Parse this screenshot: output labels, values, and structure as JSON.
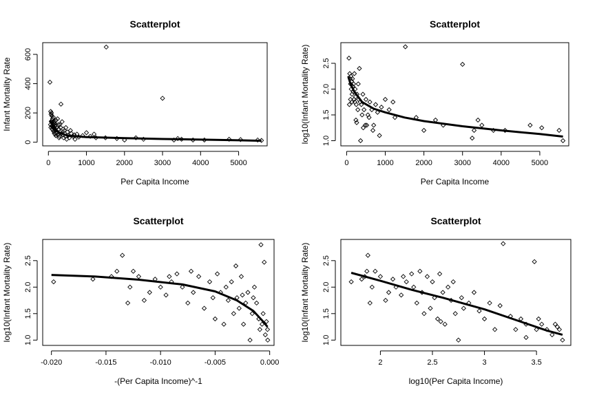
{
  "chart_data": [
    {
      "type": "scatter",
      "title": "Scatterplot",
      "xlabel": "Per Capita Income",
      "ylabel": "Infant Mortality Rate",
      "xlim": [
        -150,
        5750
      ],
      "ylim": [
        -25,
        680
      ],
      "xticks": [
        0,
        1000,
        2000,
        3000,
        4000,
        5000
      ],
      "yticks": [
        0,
        200,
        400,
        600
      ],
      "points": [
        [
          40,
          410
        ],
        [
          1520,
          650
        ],
        [
          3000,
          300
        ],
        [
          60,
          210
        ],
        [
          70,
          190
        ],
        [
          80,
          200
        ],
        [
          90,
          180
        ],
        [
          100,
          150
        ],
        [
          110,
          160
        ],
        [
          120,
          140
        ],
        [
          130,
          170
        ],
        [
          140,
          120
        ],
        [
          150,
          100
        ],
        [
          160,
          130
        ],
        [
          170,
          90
        ],
        [
          180,
          110
        ],
        [
          190,
          80
        ],
        [
          200,
          150
        ],
        [
          210,
          60
        ],
        [
          220,
          100
        ],
        [
          230,
          70
        ],
        [
          250,
          50
        ],
        [
          270,
          90
        ],
        [
          290,
          40
        ],
        [
          300,
          120
        ],
        [
          310,
          70
        ],
        [
          330,
          260
        ],
        [
          350,
          60
        ],
        [
          380,
          50
        ],
        [
          400,
          30
        ],
        [
          420,
          80
        ],
        [
          450,
          40
        ],
        [
          480,
          20
        ],
        [
          500,
          70
        ],
        [
          550,
          30
        ],
        [
          600,
          60
        ],
        [
          650,
          40
        ],
        [
          700,
          20
        ],
        [
          750,
          55
        ],
        [
          800,
          35
        ],
        [
          900,
          45
        ],
        [
          1000,
          65
        ],
        [
          1100,
          40
        ],
        [
          1200,
          55
        ],
        [
          1250,
          30
        ],
        [
          1500,
          30
        ],
        [
          1800,
          25
        ],
        [
          2000,
          15
        ],
        [
          2300,
          30
        ],
        [
          2500,
          20
        ],
        [
          3300,
          15
        ],
        [
          3400,
          25
        ],
        [
          3500,
          20
        ],
        [
          3800,
          15
        ],
        [
          4100,
          15
        ],
        [
          4750,
          20
        ],
        [
          5050,
          18
        ],
        [
          5500,
          15
        ],
        [
          5600,
          12
        ],
        [
          55,
          120
        ],
        [
          65,
          100
        ],
        [
          75,
          140
        ],
        [
          85,
          110
        ],
        [
          95,
          90
        ],
        [
          105,
          130
        ],
        [
          115,
          85
        ],
        [
          125,
          105
        ],
        [
          135,
          75
        ],
        [
          145,
          95
        ],
        [
          155,
          60
        ],
        [
          165,
          140
        ],
        [
          175,
          55
        ],
        [
          185,
          120
        ],
        [
          195,
          45
        ],
        [
          240,
          160
        ],
        [
          260,
          120
        ],
        [
          280,
          30
        ],
        [
          320,
          100
        ],
        [
          360,
          140
        ],
        [
          390,
          90
        ],
        [
          430,
          60
        ],
        [
          460,
          100
        ],
        [
          520,
          45
        ],
        [
          580,
          80
        ],
        [
          680,
          50
        ]
      ],
      "smooth": [
        [
          40,
          150
        ],
        [
          120,
          110
        ],
        [
          250,
          70
        ],
        [
          500,
          45
        ],
        [
          1000,
          35
        ],
        [
          2000,
          28
        ],
        [
          3000,
          22
        ],
        [
          4000,
          18
        ],
        [
          5000,
          13
        ],
        [
          5600,
          10
        ]
      ]
    },
    {
      "type": "scatter",
      "title": "Scatterplot",
      "xlabel": "Per Capita Income",
      "ylabel": "log10(Infant Mortality Rate)",
      "xlim": [
        -150,
        5750
      ],
      "ylim": [
        0.9,
        2.9
      ],
      "xticks": [
        0,
        1000,
        2000,
        3000,
        4000,
        5000
      ],
      "yticks": [
        1.0,
        1.5,
        2.0,
        2.5
      ],
      "points": [
        [
          60,
          2.6
        ],
        [
          80,
          2.3
        ],
        [
          90,
          2.2
        ],
        [
          100,
          2.1
        ],
        [
          110,
          2.25
        ],
        [
          120,
          2.0
        ],
        [
          130,
          2.15
        ],
        [
          140,
          1.9
        ],
        [
          150,
          2.2
        ],
        [
          160,
          2.05
        ],
        [
          170,
          1.95
        ],
        [
          180,
          2.1
        ],
        [
          190,
          1.8
        ],
        [
          200,
          2.3
        ],
        [
          210,
          1.75
        ],
        [
          220,
          2.0
        ],
        [
          230,
          1.85
        ],
        [
          250,
          1.7
        ],
        [
          270,
          1.9
        ],
        [
          290,
          1.6
        ],
        [
          300,
          2.1
        ],
        [
          310,
          1.8
        ],
        [
          330,
          2.4
        ],
        [
          350,
          1.75
        ],
        [
          380,
          1.7
        ],
        [
          400,
          1.5
        ],
        [
          420,
          1.9
        ],
        [
          450,
          1.6
        ],
        [
          480,
          1.3
        ],
        [
          500,
          1.8
        ],
        [
          550,
          1.5
        ],
        [
          600,
          1.75
        ],
        [
          650,
          1.6
        ],
        [
          700,
          1.3
        ],
        [
          750,
          1.7
        ],
        [
          800,
          1.55
        ],
        [
          900,
          1.65
        ],
        [
          1000,
          1.8
        ],
        [
          1100,
          1.6
        ],
        [
          1200,
          1.75
        ],
        [
          1250,
          1.45
        ],
        [
          1520,
          2.82
        ],
        [
          1800,
          1.45
        ],
        [
          2000,
          1.2
        ],
        [
          2300,
          1.4
        ],
        [
          2500,
          1.3
        ],
        [
          3000,
          2.48
        ],
        [
          3300,
          1.2
        ],
        [
          3400,
          1.4
        ],
        [
          3500,
          1.3
        ],
        [
          3800,
          1.2
        ],
        [
          4100,
          1.2
        ],
        [
          4750,
          1.3
        ],
        [
          5050,
          1.25
        ],
        [
          5500,
          1.2
        ],
        [
          5600,
          1.0
        ],
        [
          70,
          1.7
        ],
        [
          100,
          1.8
        ],
        [
          140,
          1.75
        ],
        [
          240,
          1.4
        ],
        [
          260,
          1.35
        ],
        [
          360,
          1.0
        ],
        [
          430,
          1.25
        ],
        [
          520,
          1.3
        ],
        [
          580,
          1.45
        ],
        [
          680,
          1.2
        ],
        [
          850,
          1.1
        ],
        [
          3250,
          1.05
        ]
      ],
      "smooth": [
        [
          40,
          2.25
        ],
        [
          100,
          2.1
        ],
        [
          200,
          1.95
        ],
        [
          400,
          1.75
        ],
        [
          700,
          1.62
        ],
        [
          1000,
          1.55
        ],
        [
          1500,
          1.45
        ],
        [
          2000,
          1.38
        ],
        [
          3000,
          1.28
        ],
        [
          4000,
          1.2
        ],
        [
          5000,
          1.13
        ],
        [
          5600,
          1.08
        ]
      ]
    },
    {
      "type": "scatter",
      "title": "Scatterplot",
      "xlabel": "-(Per Capita Income)^-1",
      "ylabel": "log10(Infant Mortality Rate)",
      "xlim": [
        -0.0208,
        0.0004
      ],
      "ylim": [
        0.9,
        2.9
      ],
      "xticks": [
        -0.02,
        -0.015,
        -0.01,
        -0.005,
        0.0
      ],
      "xtick_labels": [
        "-0.020",
        "-0.015",
        "-0.010",
        "-0.005",
        "0.000"
      ],
      "yticks": [
        1.0,
        1.5,
        2.0,
        2.5
      ],
      "points": [
        [
          -0.0198,
          2.1
        ],
        [
          -0.0162,
          2.15
        ],
        [
          -0.0145,
          2.2
        ],
        [
          -0.014,
          2.3
        ],
        [
          -0.0135,
          2.6
        ],
        [
          -0.013,
          1.7
        ],
        [
          -0.0128,
          2.0
        ],
        [
          -0.0125,
          2.3
        ],
        [
          -0.012,
          2.2
        ],
        [
          -0.0115,
          1.75
        ],
        [
          -0.011,
          1.9
        ],
        [
          -0.0105,
          2.15
        ],
        [
          -0.01,
          2.0
        ],
        [
          -0.0095,
          1.85
        ],
        [
          -0.0092,
          2.2
        ],
        [
          -0.009,
          2.1
        ],
        [
          -0.0085,
          2.25
        ],
        [
          -0.008,
          2.0
        ],
        [
          -0.0075,
          1.7
        ],
        [
          -0.0072,
          2.3
        ],
        [
          -0.007,
          1.9
        ],
        [
          -0.0065,
          2.2
        ],
        [
          -0.006,
          1.6
        ],
        [
          -0.0055,
          2.1
        ],
        [
          -0.0052,
          1.8
        ],
        [
          -0.005,
          1.4
        ],
        [
          -0.0048,
          2.25
        ],
        [
          -0.0045,
          1.9
        ],
        [
          -0.0042,
          1.3
        ],
        [
          -0.004,
          2.0
        ],
        [
          -0.0038,
          1.75
        ],
        [
          -0.0035,
          2.1
        ],
        [
          -0.0033,
          1.5
        ],
        [
          -0.0031,
          2.4
        ],
        [
          -0.003,
          1.8
        ],
        [
          -0.0028,
          1.6
        ],
        [
          -0.0026,
          2.2
        ],
        [
          -0.0024,
          1.3
        ],
        [
          -0.0022,
          1.7
        ],
        [
          -0.002,
          1.9
        ],
        [
          -0.0018,
          1.0
        ],
        [
          -0.0016,
          1.5
        ],
        [
          -0.0014,
          2.0
        ],
        [
          -0.0012,
          1.7
        ],
        [
          -0.001,
          1.4
        ],
        [
          -0.0009,
          1.2
        ],
        [
          -0.0008,
          2.8
        ],
        [
          -0.0007,
          1.3
        ],
        [
          -0.0006,
          1.5
        ],
        [
          -0.0005,
          2.47
        ],
        [
          -0.0004,
          1.1
        ],
        [
          -0.0003,
          1.35
        ],
        [
          -0.0002,
          1.2
        ],
        [
          -0.00018,
          1.0
        ],
        [
          -0.0025,
          1.85
        ],
        [
          -0.0015,
          1.8
        ]
      ],
      "smooth": [
        [
          -0.02,
          2.23
        ],
        [
          -0.016,
          2.2
        ],
        [
          -0.012,
          2.14
        ],
        [
          -0.008,
          2.05
        ],
        [
          -0.005,
          1.92
        ],
        [
          -0.003,
          1.75
        ],
        [
          -0.0015,
          1.55
        ],
        [
          -0.0006,
          1.35
        ],
        [
          -0.0002,
          1.25
        ]
      ]
    },
    {
      "type": "scatter",
      "title": "Scatterplot",
      "xlabel": "log10(Per Capita Income)",
      "ylabel": "log10(Infant Mortality Rate)",
      "xlim": [
        1.62,
        3.83
      ],
      "ylim": [
        0.9,
        2.9
      ],
      "xticks": [
        2.0,
        2.5,
        3.0,
        3.5
      ],
      "yticks": [
        1.0,
        1.5,
        2.0,
        2.5
      ],
      "points": [
        [
          1.72,
          2.1
        ],
        [
          1.82,
          2.15
        ],
        [
          1.85,
          2.2
        ],
        [
          1.87,
          2.3
        ],
        [
          1.88,
          2.6
        ],
        [
          1.9,
          1.7
        ],
        [
          1.92,
          2.0
        ],
        [
          1.95,
          2.3
        ],
        [
          2.0,
          2.2
        ],
        [
          2.05,
          1.75
        ],
        [
          2.08,
          1.9
        ],
        [
          2.12,
          2.15
        ],
        [
          2.15,
          2.0
        ],
        [
          2.2,
          1.85
        ],
        [
          2.22,
          2.2
        ],
        [
          2.25,
          2.1
        ],
        [
          2.3,
          2.25
        ],
        [
          2.32,
          2.0
        ],
        [
          2.35,
          1.7
        ],
        [
          2.38,
          2.3
        ],
        [
          2.4,
          1.9
        ],
        [
          2.45,
          2.2
        ],
        [
          2.48,
          1.6
        ],
        [
          2.5,
          2.1
        ],
        [
          2.52,
          1.8
        ],
        [
          2.55,
          1.4
        ],
        [
          2.57,
          2.25
        ],
        [
          2.6,
          1.9
        ],
        [
          2.62,
          1.3
        ],
        [
          2.65,
          2.0
        ],
        [
          2.68,
          1.75
        ],
        [
          2.7,
          2.1
        ],
        [
          2.72,
          1.5
        ],
        [
          2.75,
          1.0
        ],
        [
          2.78,
          1.8
        ],
        [
          2.8,
          1.6
        ],
        [
          2.85,
          1.7
        ],
        [
          2.9,
          1.9
        ],
        [
          3.0,
          1.4
        ],
        [
          3.05,
          1.7
        ],
        [
          3.1,
          1.2
        ],
        [
          3.18,
          2.82
        ],
        [
          3.25,
          1.45
        ],
        [
          3.3,
          1.2
        ],
        [
          3.35,
          1.4
        ],
        [
          3.4,
          1.3
        ],
        [
          3.48,
          2.48
        ],
        [
          3.5,
          1.2
        ],
        [
          3.52,
          1.4
        ],
        [
          3.55,
          1.3
        ],
        [
          3.6,
          1.2
        ],
        [
          3.65,
          1.1
        ],
        [
          3.68,
          1.3
        ],
        [
          3.7,
          1.25
        ],
        [
          3.72,
          1.2
        ],
        [
          3.75,
          1.0
        ],
        [
          2.42,
          1.5
        ],
        [
          2.58,
          1.35
        ],
        [
          2.95,
          1.55
        ],
        [
          3.15,
          1.65
        ],
        [
          3.4,
          1.05
        ]
      ],
      "smooth": [
        [
          1.72,
          2.27
        ],
        [
          2.0,
          2.12
        ],
        [
          2.3,
          1.95
        ],
        [
          2.6,
          1.8
        ],
        [
          3.0,
          1.58
        ],
        [
          3.3,
          1.38
        ],
        [
          3.6,
          1.18
        ],
        [
          3.75,
          1.1
        ]
      ]
    }
  ]
}
